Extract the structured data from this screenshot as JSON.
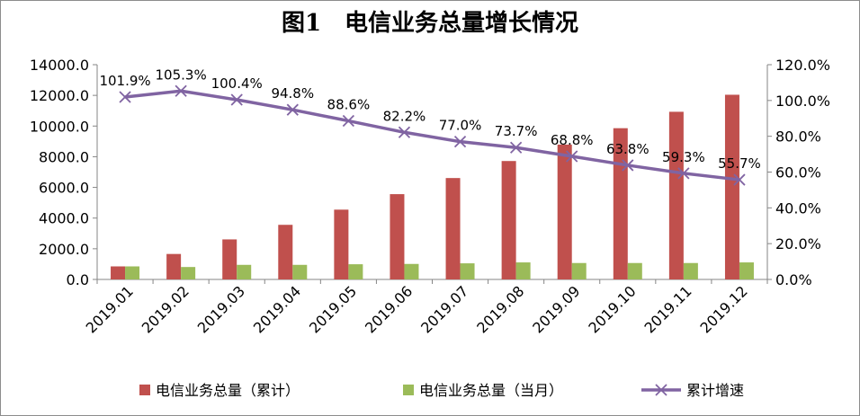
{
  "chart_data": {
    "type": "bar",
    "title": "图1　电信业务总量增长情况",
    "categories": [
      "2019.01",
      "2019.02",
      "2019.03",
      "2019.04",
      "2019.05",
      "2019.06",
      "2019.07",
      "2019.08",
      "2019.09",
      "2019.10",
      "2019.11",
      "2019.12"
    ],
    "series": [
      {
        "name": "电信业务总量（累计）",
        "type": "bar",
        "axis": "left",
        "color": "#c0504d",
        "values": [
          850,
          1660,
          2610,
          3560,
          4550,
          5560,
          6610,
          7720,
          8790,
          9860,
          10930,
          12040
        ]
      },
      {
        "name": "电信业务总量（当月）",
        "type": "bar",
        "axis": "left",
        "color": "#9bbb59",
        "values": [
          850,
          810,
          950,
          950,
          990,
          1010,
          1050,
          1110,
          1070,
          1070,
          1070,
          1110
        ]
      },
      {
        "name": "累计增速",
        "type": "line",
        "axis": "right",
        "color": "#8064a2",
        "values": [
          101.9,
          105.3,
          100.4,
          94.8,
          88.6,
          82.2,
          77.0,
          73.7,
          68.8,
          63.8,
          59.3,
          55.7
        ],
        "labels": [
          "101.9%",
          "105.3%",
          "100.4%",
          "94.8%",
          "88.6%",
          "82.2%",
          "77.0%",
          "73.7%",
          "68.8%",
          "63.8%",
          "59.3%",
          "55.7%"
        ]
      }
    ],
    "y_left": {
      "min": 0,
      "max": 14000,
      "ticks": [
        0,
        2000,
        4000,
        6000,
        8000,
        10000,
        12000,
        14000
      ],
      "tick_labels": [
        "0.0",
        "2000.0",
        "4000.0",
        "6000.0",
        "8000.0",
        "10000.0",
        "12000.0",
        "14000.0"
      ]
    },
    "y_right": {
      "min": 0,
      "max": 120,
      "ticks": [
        0,
        20,
        40,
        60,
        80,
        100,
        120
      ],
      "tick_labels": [
        "0.0%",
        "20.0%",
        "40.0%",
        "60.0%",
        "80.0%",
        "100.0%",
        "120.0%"
      ]
    },
    "legend_position": "bottom",
    "grid": false
  }
}
